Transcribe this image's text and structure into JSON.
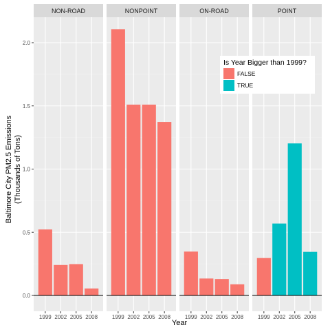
{
  "chart_data": {
    "type": "bar",
    "facets": [
      "NON-ROAD",
      "NONPOINT",
      "ON-ROAD",
      "POINT"
    ],
    "categories": [
      "1999",
      "2002",
      "2005",
      "2008"
    ],
    "series": [
      {
        "facet": "NON-ROAD",
        "values": [
          0.522,
          0.241,
          0.248,
          0.055
        ],
        "bigger_than_1999": [
          false,
          false,
          false,
          false
        ]
      },
      {
        "facet": "NONPOINT",
        "values": [
          2.107,
          1.51,
          1.51,
          1.373
        ],
        "bigger_than_1999": [
          false,
          false,
          false,
          false
        ]
      },
      {
        "facet": "ON-ROAD",
        "values": [
          0.347,
          0.134,
          0.13,
          0.088
        ],
        "bigger_than_1999": [
          false,
          false,
          false,
          false
        ]
      },
      {
        "facet": "POINT",
        "values": [
          0.296,
          0.569,
          1.203,
          0.345
        ],
        "bigger_than_1999": [
          false,
          true,
          true,
          true
        ]
      }
    ],
    "xlabel": "Year",
    "ylabel": "Baltimore City PM2.5 Emissions",
    "ylabel2": "(Thousands of Tons)",
    "ylim": [
      0,
      2.2
    ],
    "yticks": [
      0.0,
      0.5,
      1.0,
      1.5,
      2.0
    ],
    "ytick_labels": [
      "0.0",
      "0.5",
      "1.0",
      "1.5",
      "2.0"
    ],
    "grid": true,
    "legend": {
      "title": "Is Year Bigger than 1999?",
      "entries": [
        "FALSE",
        "TRUE"
      ],
      "placement": "top-right"
    },
    "colors": {
      "FALSE": "#F8766D",
      "TRUE": "#00BFC4",
      "panel": "#EBEBEB",
      "strip": "#D9D9D9",
      "grid_major": "#FFFFFF",
      "grid_minor": "#F2F2F2"
    }
  }
}
